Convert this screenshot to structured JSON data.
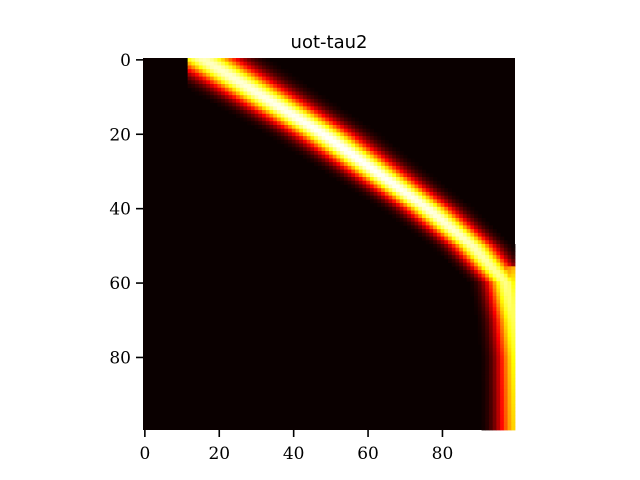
{
  "chart_data": {
    "type": "heatmap",
    "title": "uot-tau2",
    "xlabel": "",
    "ylabel": "",
    "rows": 100,
    "cols": 100,
    "colormap": "hot",
    "background_color": "#0a0000",
    "x_ticks": [
      0,
      20,
      40,
      60,
      80
    ],
    "y_ticks": [
      0,
      20,
      40,
      60,
      80
    ],
    "xlim": [
      -0.5,
      99.5
    ],
    "ylim": [
      99.5,
      -0.5
    ],
    "y_axis_inverted": true,
    "grid": false,
    "legend": "none",
    "ridge": {
      "description_of_band": "bright band from top-left curving to right edge",
      "control_points": [
        {
          "row": 0,
          "col_center": 16
        },
        {
          "row": 10,
          "col_center": 32
        },
        {
          "row": 20,
          "col_center": 48
        },
        {
          "row": 30,
          "col_center": 62
        },
        {
          "row": 40,
          "col_center": 76
        },
        {
          "row": 50,
          "col_center": 88
        },
        {
          "row": 60,
          "col_center": 97
        },
        {
          "row": 70,
          "col_center": 99
        },
        {
          "row": 80,
          "col_center": 100
        }
      ],
      "band_start_col": 12,
      "band_start_rows": [
        0,
        17
      ],
      "peak_row": 25,
      "peak_col": 52
    }
  }
}
